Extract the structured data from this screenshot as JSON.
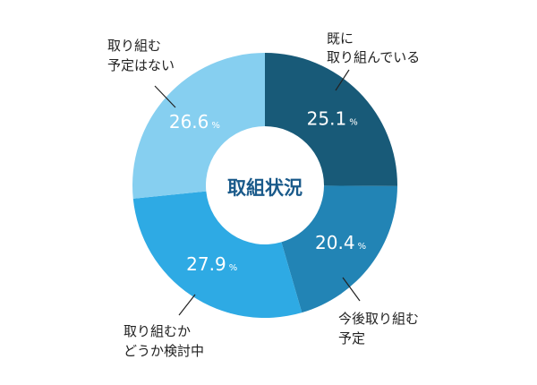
{
  "chart_data": {
    "type": "pie",
    "style": "donut",
    "center_label": "取組状況",
    "unit": "%",
    "start": "top",
    "direction": "clockwise",
    "slices": [
      {
        "label_lines": [
          "既に",
          "取り組んでいる"
        ],
        "value": 25.1,
        "display": "25.1",
        "color": "#185a78"
      },
      {
        "label_lines": [
          "今後取り組む",
          "予定"
        ],
        "value": 20.4,
        "display": "20.4",
        "color": "#2284b5"
      },
      {
        "label_lines": [
          "取り組むか",
          "どうか検討中"
        ],
        "value": 27.9,
        "display": "27.9",
        "color": "#2eaae4"
      },
      {
        "label_lines": [
          "取り組む",
          "予定はない"
        ],
        "value": 26.6,
        "display": "26.6",
        "color": "#86cff0"
      }
    ]
  }
}
